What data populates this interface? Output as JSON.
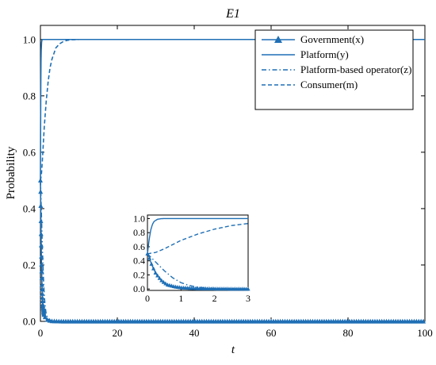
{
  "chart_data": {
    "type": "line",
    "title": "E1",
    "xlabel": "t",
    "ylabel": "Probability",
    "xlim": [
      0,
      100
    ],
    "ylim": [
      0,
      1.05
    ],
    "xticks": [
      0,
      20,
      40,
      60,
      80,
      100
    ],
    "yticks": [
      0.0,
      0.2,
      0.4,
      0.6,
      0.8,
      1.0
    ],
    "xtick_labels": [
      "0",
      "20",
      "40",
      "60",
      "80",
      "100"
    ],
    "ytick_labels": [
      "0.0",
      "0.2",
      "0.4",
      "0.6",
      "0.8",
      "1.0"
    ],
    "legend_position": "top-right",
    "grid": false,
    "color": "#1f6fb5",
    "series": [
      {
        "name": "Government(x)",
        "style": "solid-triangle",
        "x": [
          0,
          0.02,
          0.05,
          0.08,
          0.1,
          0.15,
          0.2,
          0.25,
          0.3,
          0.4,
          0.5,
          0.6,
          0.8,
          1.0,
          1.5,
          2,
          3,
          5,
          10,
          20,
          40,
          60,
          80,
          100
        ],
        "y": [
          0.5,
          0.48,
          0.45,
          0.41,
          0.38,
          0.32,
          0.27,
          0.22,
          0.19,
          0.13,
          0.09,
          0.06,
          0.035,
          0.02,
          0.008,
          0.004,
          0.001,
          0,
          0,
          0,
          0,
          0,
          0,
          0
        ]
      },
      {
        "name": "Platform(y)",
        "style": "solid",
        "x": [
          0,
          0.05,
          0.1,
          0.15,
          0.2,
          0.3,
          0.4,
          0.5,
          0.7,
          1.0,
          2,
          5,
          10,
          20,
          40,
          60,
          80,
          100
        ],
        "y": [
          0.5,
          0.7,
          0.84,
          0.92,
          0.96,
          0.99,
          0.998,
          1.0,
          1.0,
          1.0,
          1.0,
          1.0,
          1.0,
          1.0,
          1.0,
          1.0,
          1.0,
          1.0
        ]
      },
      {
        "name": "Platform-based operator(z)",
        "style": "dashdot",
        "x": [
          0,
          0.25,
          0.5,
          0.75,
          1.0,
          1.25,
          1.5,
          2,
          3,
          5,
          10,
          20,
          40,
          60,
          80,
          100
        ],
        "y": [
          0.5,
          0.38,
          0.26,
          0.16,
          0.09,
          0.05,
          0.025,
          0.008,
          0.001,
          0,
          0,
          0,
          0,
          0,
          0,
          0
        ]
      },
      {
        "name": "Consumer(m)",
        "style": "dashed",
        "x": [
          0,
          0.25,
          0.5,
          0.75,
          1.0,
          1.5,
          2,
          2.5,
          3,
          4,
          5,
          6,
          7,
          8,
          10,
          20,
          40,
          60,
          80,
          100
        ],
        "y": [
          0.5,
          0.52,
          0.57,
          0.63,
          0.69,
          0.78,
          0.85,
          0.9,
          0.93,
          0.97,
          0.985,
          0.993,
          0.997,
          0.999,
          1.0,
          1.0,
          1.0,
          1.0,
          1.0,
          1.0
        ]
      }
    ],
    "inset": {
      "xlim": [
        0,
        3
      ],
      "ylim": [
        -0.02,
        1.05
      ],
      "xticks": [
        0,
        1,
        2,
        3
      ],
      "yticks": [
        0.0,
        0.2,
        0.4,
        0.6,
        0.8,
        1.0
      ],
      "xtick_labels": [
        "0",
        "1",
        "2",
        "3"
      ],
      "ytick_labels": [
        "0.0",
        "0.2",
        "0.4",
        "0.6",
        "0.8",
        "1.0"
      ]
    }
  }
}
